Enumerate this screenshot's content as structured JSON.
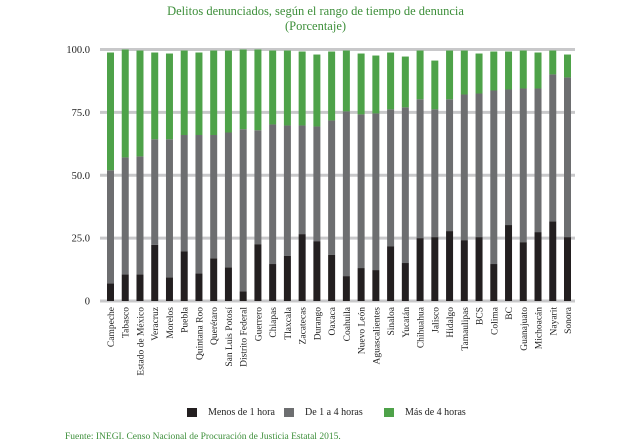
{
  "colors": {
    "menos1": "#231f20",
    "de1a4": "#6d6e70",
    "mas4": "#4ea249",
    "grid": "#c8c8ca",
    "title": "#3d8f3a"
  },
  "source": "Fuente: INEGI. Censo Nacional de Procuración de Justicia Estatal 2015.",
  "chart_data": {
    "type": "bar",
    "stacked": true,
    "title": "Delitos denunciados, según el rango de tiempo de denuncia",
    "subtitle": "(Porcentaje)",
    "xlabel": "",
    "ylabel": "",
    "ylim": [
      0,
      100
    ],
    "yticks": [
      0,
      25,
      50,
      75,
      100
    ],
    "ytick_labels": [
      "0",
      "25.0",
      "50.0",
      "75.0",
      "100.0"
    ],
    "grid": true,
    "legend_position": "bottom",
    "categories": [
      "Campeche",
      "Tabasco",
      "Estado de México",
      "Veracruz",
      "Morelos",
      "Puebla",
      "Quintana Roo",
      "Querétaro",
      "San Luis Potosí",
      "Distrito Federal",
      "Guerrero",
      "Chiapas",
      "Tlaxcala",
      "Zacatecas",
      "Durango",
      "Oaxaca",
      "Coahuila",
      "Nuevo León",
      "Aguascalientes",
      "Sinaloa",
      "Yucatán",
      "Chihuahua",
      "Jalisco",
      "Hidalgo",
      "Tamaulipas",
      "BCS",
      "Colima",
      "BC",
      "Guanajuato",
      "Michoacán",
      "Nayarit",
      "Sonora"
    ],
    "series": [
      {
        "name": "Menos de 1 hora",
        "color_key": "menos1",
        "values": [
          7.0,
          10.6,
          10.6,
          22.3,
          9.4,
          19.8,
          11.0,
          17.0,
          13.4,
          3.8,
          22.6,
          14.7,
          17.9,
          26.6,
          23.8,
          18.3,
          9.9,
          13.1,
          12.3,
          21.8,
          15.1,
          25.0,
          25.4,
          27.8,
          24.2,
          25.4,
          14.7,
          30.2,
          23.4,
          27.4,
          31.7,
          25.4
        ]
      },
      {
        "name": "De 1 a 4 horas",
        "color_key": "de1a4",
        "values": [
          45.0,
          46.5,
          46.9,
          42.0,
          54.9,
          46.2,
          55.0,
          49.0,
          53.6,
          64.5,
          45.3,
          55.5,
          51.9,
          43.2,
          45.6,
          53.5,
          65.5,
          61.1,
          62.3,
          54.4,
          61.9,
          55.2,
          50.8,
          52.4,
          57.9,
          57.1,
          69.0,
          53.9,
          61.1,
          57.1,
          58.4,
          63.5
        ]
      },
      {
        "name": "Más de 4 horas",
        "color_key": "mas4",
        "values": [
          46.8,
          42.9,
          42.1,
          34.5,
          34.1,
          33.6,
          32.8,
          33.6,
          32.6,
          31.7,
          32.1,
          29.4,
          29.8,
          29.4,
          28.6,
          27.4,
          24.2,
          24.2,
          23.0,
          22.6,
          20.2,
          19.4,
          19.4,
          19.4,
          17.5,
          15.9,
          15.5,
          15.1,
          15.1,
          14.3,
          9.5,
          9.1
        ]
      }
    ]
  }
}
